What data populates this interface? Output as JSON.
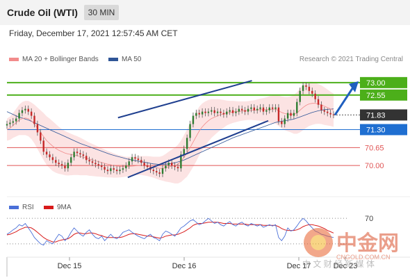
{
  "header": {
    "title": "Crude Oil (WTI)",
    "timeframe": "30 MIN"
  },
  "datetime": "Friday, December 17, 2021 12:57:45 AM CET",
  "legend": {
    "ma20_label": "MA 20 + Bollinger Bands",
    "ma20_color": "#f28b8b",
    "ma50_label": "MA 50",
    "ma50_color": "#2f5597"
  },
  "copyright": "Research © 2021 Trading Central",
  "rsi_legend": {
    "rsi_label": "RSI",
    "rsi_color": "#4a6fd8",
    "ma_label": "9MA",
    "ma_color": "#d81b1b"
  },
  "x_labels": [
    "Dec 15",
    "Dec 16",
    "Dec 17",
    "Dec 23"
  ],
  "watermark": {
    "brand": "中金网",
    "url": "CNGOLD.COM.CN",
    "tagline": "中 文 财 经 新 媒 体"
  },
  "chart_data": [
    {
      "type": "candlestick",
      "ylim": [
        69.2,
        73.6
      ],
      "levels": [
        {
          "value": "73.00",
          "kind": "target",
          "color": "#4caf1a"
        },
        {
          "value": "72.55",
          "kind": "target",
          "color": "#4caf1a"
        },
        {
          "value": "71.83",
          "kind": "last",
          "color": "#333333"
        },
        {
          "value": "71.30",
          "kind": "pivot",
          "color": "#1f6fd1"
        },
        {
          "value": "70.65",
          "kind": "support",
          "color": "#e05555"
        },
        {
          "value": "70.00",
          "kind": "support",
          "color": "#e05555"
        }
      ],
      "channel": {
        "upper": [
          [
            0.34,
            71.73
          ],
          [
            0.75,
            73.07
          ]
        ],
        "lower": [
          [
            0.37,
            69.57
          ],
          [
            0.8,
            71.62
          ]
        ]
      },
      "closes": [
        71.5,
        71.55,
        71.6,
        71.7,
        71.9,
        72.0,
        72.05,
        71.95,
        71.8,
        71.5,
        71.2,
        70.9,
        70.5,
        70.4,
        70.3,
        70.2,
        70.1,
        70.05,
        70.0,
        69.9,
        70.1,
        70.3,
        70.5,
        70.45,
        70.4,
        70.35,
        70.2,
        70.15,
        70.1,
        70.05,
        70.0,
        69.95,
        69.85,
        69.8,
        69.9,
        69.85,
        69.8,
        69.85,
        69.9,
        70.0,
        70.15,
        70.3,
        70.25,
        70.2,
        70.1,
        70.0,
        69.95,
        69.85,
        69.8,
        69.75,
        69.7,
        69.9,
        70.0,
        70.1,
        70.0,
        69.95,
        69.9,
        70.4,
        70.6,
        71.0,
        71.5,
        71.8,
        71.9,
        71.85,
        71.95,
        71.9,
        71.95,
        72.0,
        71.9,
        71.95,
        71.9,
        71.85,
        71.95,
        72.0,
        71.9,
        71.95,
        72.05,
        72.0,
        71.95,
        72.05,
        72.1,
        72.0,
        72.05,
        72.1,
        71.95,
        72.0,
        72.1,
        72.05,
        72.1,
        71.6,
        71.5,
        71.7,
        71.9,
        71.8,
        71.9,
        72.3,
        72.7,
        72.9,
        72.85,
        72.7,
        72.6,
        72.4,
        72.2,
        72.0,
        71.95,
        71.9,
        71.85,
        71.83
      ],
      "ma20": [
        71.3,
        71.35,
        71.45,
        71.55,
        71.65,
        71.7,
        71.72,
        71.7,
        71.62,
        71.5,
        71.35,
        71.2,
        71.05,
        70.9,
        70.8,
        70.7,
        70.62,
        70.55,
        70.5,
        70.45,
        70.42,
        70.4,
        70.38,
        70.36,
        70.33,
        70.3,
        70.27,
        70.23,
        70.2,
        70.17,
        70.14,
        70.11,
        70.08,
        70.05,
        70.03,
        70.0,
        69.98,
        69.97,
        69.96,
        69.96,
        69.97,
        69.98,
        69.99,
        70.0,
        70.0,
        69.99,
        69.98,
        69.96,
        69.94,
        69.92,
        69.9,
        69.9,
        69.92,
        69.95,
        69.98,
        70.0,
        70.05,
        70.15,
        70.3,
        70.45,
        70.65,
        70.85,
        71.05,
        71.25,
        71.4,
        71.52,
        71.62,
        71.7,
        71.75,
        71.8,
        71.84,
        71.87,
        71.9,
        71.92,
        71.94,
        71.95,
        71.96,
        71.97,
        71.98,
        71.99,
        72.0,
        72.0,
        72.01,
        72.02,
        72.02,
        72.02,
        72.03,
        72.03,
        72.04,
        71.98,
        71.92,
        71.88,
        71.86,
        71.85,
        71.85,
        71.9,
        72.0,
        72.1,
        72.18,
        72.23,
        72.25,
        72.25,
        72.23,
        72.2,
        72.15,
        72.1,
        72.05,
        72.0
      ],
      "ma50": [
        71.95,
        71.9,
        71.85,
        71.8,
        71.75,
        71.72,
        71.68,
        71.65,
        71.6,
        71.55,
        71.5,
        71.45,
        71.4,
        71.35,
        71.3,
        71.25,
        71.2,
        71.15,
        71.1,
        71.05,
        71.0,
        70.95,
        70.9,
        70.85,
        70.8,
        70.76,
        70.72,
        70.68,
        70.64,
        70.6,
        70.56,
        70.52,
        70.48,
        70.44,
        70.4,
        70.37,
        70.34,
        70.31,
        70.28,
        70.25,
        70.22,
        70.2,
        70.18,
        70.16,
        70.14,
        70.12,
        70.1,
        70.08,
        70.06,
        70.05,
        70.04,
        70.04,
        70.05,
        70.06,
        70.08,
        70.1,
        70.13,
        70.16,
        70.2,
        70.25,
        70.3,
        70.35,
        70.4,
        70.45,
        70.5,
        70.55,
        70.6,
        70.65,
        70.7,
        70.75,
        70.8,
        70.85,
        70.9,
        70.95,
        71.0,
        71.04,
        71.08,
        71.12,
        71.16,
        71.2,
        71.24,
        71.28,
        71.32,
        71.36,
        71.4,
        71.44,
        71.48,
        71.52,
        71.56,
        71.58,
        71.6,
        71.62,
        71.64,
        71.66,
        71.68,
        71.72,
        71.76,
        71.8,
        71.84,
        71.88,
        71.92,
        71.95,
        71.98,
        72.0,
        72.02,
        72.03,
        72.04,
        72.05
      ],
      "band_width": [
        0.4,
        0.42,
        0.45,
        0.5,
        0.55,
        0.6,
        0.62,
        0.64,
        0.66,
        0.7,
        0.75,
        0.8,
        0.85,
        0.88,
        0.9,
        0.9,
        0.88,
        0.85,
        0.82,
        0.8,
        0.78,
        0.75,
        0.72,
        0.7,
        0.68,
        0.65,
        0.62,
        0.6,
        0.58,
        0.56,
        0.54,
        0.52,
        0.5,
        0.48,
        0.46,
        0.44,
        0.42,
        0.4,
        0.38,
        0.36,
        0.35,
        0.34,
        0.34,
        0.34,
        0.34,
        0.35,
        0.36,
        0.37,
        0.38,
        0.4,
        0.42,
        0.45,
        0.5,
        0.55,
        0.6,
        0.65,
        0.7,
        0.75,
        0.8,
        0.85,
        0.88,
        0.9,
        0.9,
        0.88,
        0.85,
        0.8,
        0.75,
        0.7,
        0.65,
        0.6,
        0.55,
        0.5,
        0.45,
        0.42,
        0.4,
        0.38,
        0.36,
        0.35,
        0.34,
        0.34,
        0.35,
        0.36,
        0.38,
        0.4,
        0.42,
        0.45,
        0.48,
        0.5,
        0.52,
        0.55,
        0.58,
        0.6,
        0.62,
        0.65,
        0.7,
        0.75,
        0.8,
        0.82,
        0.82,
        0.8,
        0.78,
        0.75,
        0.72,
        0.7,
        0.68,
        0.65,
        0.62,
        0.6
      ]
    },
    {
      "type": "line",
      "name": "RSI",
      "ylim": [
        20,
        80
      ],
      "level": "70",
      "rsi": [
        45,
        48,
        52,
        55,
        60,
        58,
        62,
        55,
        48,
        40,
        35,
        30,
        28,
        35,
        32,
        30,
        38,
        45,
        42,
        35,
        40,
        48,
        55,
        50,
        45,
        42,
        48,
        52,
        45,
        40,
        38,
        42,
        35,
        40,
        45,
        40,
        38,
        42,
        48,
        50,
        52,
        48,
        45,
        42,
        40,
        38,
        42,
        45,
        40,
        38,
        35,
        45,
        50,
        48,
        45,
        42,
        48,
        55,
        58,
        62,
        66,
        68,
        64,
        60,
        62,
        66,
        70,
        66,
        62,
        64,
        60,
        58,
        62,
        65,
        60,
        58,
        62,
        64,
        60,
        58,
        62,
        60,
        58,
        60,
        56,
        58,
        60,
        58,
        60,
        40,
        35,
        42,
        55,
        50,
        52,
        58,
        65,
        70,
        66,
        60,
        55,
        50,
        48,
        45,
        44,
        42,
        41,
        40
      ],
      "ma9": [
        44,
        45,
        47,
        49,
        52,
        54,
        56,
        56,
        55,
        52,
        48,
        44,
        40,
        37,
        35,
        33,
        33,
        35,
        36,
        37,
        38,
        41,
        45,
        47,
        47,
        46,
        46,
        47,
        47,
        46,
        44,
        43,
        41,
        40,
        40,
        40,
        40,
        40,
        41,
        43,
        45,
        46,
        46,
        45,
        44,
        43,
        42,
        42,
        41,
        40,
        39,
        40,
        42,
        43,
        44,
        44,
        45,
        47,
        49,
        52,
        55,
        59,
        61,
        62,
        62,
        63,
        64,
        64,
        64,
        64,
        63,
        62,
        62,
        62,
        61,
        61,
        61,
        61,
        61,
        60,
        60,
        60,
        60,
        60,
        59,
        59,
        59,
        59,
        59,
        57,
        54,
        52,
        51,
        51,
        51,
        52,
        54,
        57,
        59,
        60,
        60,
        59,
        58,
        56,
        54,
        51,
        49,
        47
      ]
    }
  ]
}
